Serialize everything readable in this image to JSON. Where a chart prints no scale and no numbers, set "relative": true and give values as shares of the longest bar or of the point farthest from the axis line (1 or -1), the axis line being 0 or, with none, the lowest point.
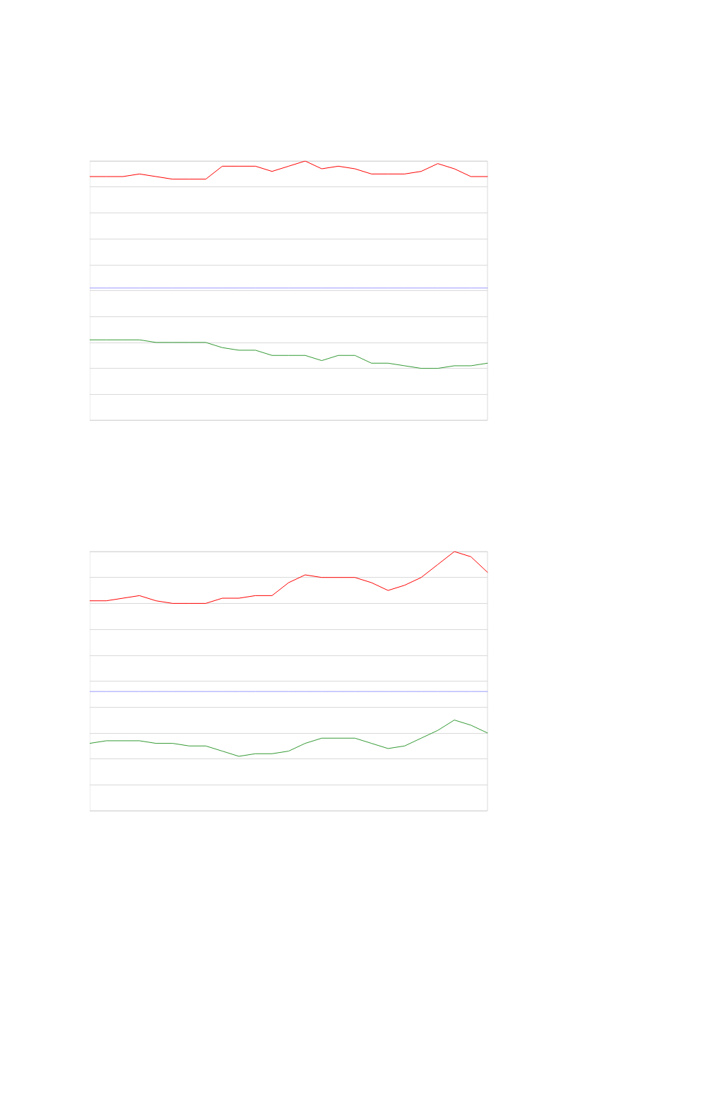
{
  "chart_data": [
    {
      "type": "line",
      "relative": true,
      "grid": "y",
      "marker": "none",
      "line_style": "solid",
      "categories": [
        null,
        null,
        null,
        null,
        null,
        null,
        null,
        null,
        null,
        null,
        null,
        null,
        null,
        null,
        null,
        null,
        null,
        null,
        null,
        null,
        null,
        null,
        null,
        null,
        null
      ],
      "series": [
        {
          "color": "#ff0000",
          "values": [
            0.94,
            0.94,
            0.94,
            0.95,
            0.94,
            0.93,
            0.93,
            0.93,
            0.98,
            0.98,
            0.98,
            0.96,
            0.98,
            1,
            0.97,
            0.98,
            0.97,
            0.95,
            0.95,
            0.95,
            0.96,
            0.99,
            0.97,
            0.94,
            0.94
          ]
        },
        {
          "color": "#9999ff",
          "values": [
            0.51,
            0.51,
            0.51,
            0.51,
            0.51,
            0.51,
            0.51,
            0.51,
            0.51,
            0.51,
            0.51,
            0.51,
            0.51,
            0.51,
            0.51,
            0.51,
            0.51,
            0.51,
            0.51,
            0.51,
            0.51,
            0.51,
            0.51,
            0.51,
            0.51
          ]
        },
        {
          "color": "#339933",
          "values": [
            0.31,
            0.31,
            0.31,
            0.31,
            0.3,
            0.3,
            0.3,
            0.3,
            0.28,
            0.27,
            0.27,
            0.25,
            0.25,
            0.25,
            0.23,
            0.25,
            0.25,
            0.22,
            0.22,
            0.21,
            0.2,
            0.2,
            0.21,
            0.21,
            0.22
          ]
        }
      ]
    },
    {
      "type": "line",
      "relative": true,
      "grid": "y",
      "marker": "none",
      "line_style": "solid",
      "categories": [
        null,
        null,
        null,
        null,
        null,
        null,
        null,
        null,
        null,
        null,
        null,
        null,
        null,
        null,
        null,
        null,
        null,
        null,
        null,
        null,
        null,
        null,
        null,
        null,
        null
      ],
      "series": [
        {
          "color": "#ff0000",
          "values": [
            0.81,
            0.81,
            0.82,
            0.83,
            0.81,
            0.8,
            0.8,
            0.8,
            0.82,
            0.82,
            0.83,
            0.83,
            0.88,
            0.91,
            0.9,
            0.9,
            0.9,
            0.88,
            0.85,
            0.87,
            0.9,
            0.95,
            1,
            0.98,
            0.92
          ]
        },
        {
          "color": "#9999ff",
          "values": [
            0.46,
            0.46,
            0.46,
            0.46,
            0.46,
            0.46,
            0.46,
            0.46,
            0.46,
            0.46,
            0.46,
            0.46,
            0.46,
            0.46,
            0.46,
            0.46,
            0.46,
            0.46,
            0.46,
            0.46,
            0.46,
            0.46,
            0.46,
            0.46,
            0.46
          ]
        },
        {
          "color": "#339933",
          "values": [
            0.26,
            0.27,
            0.27,
            0.27,
            0.26,
            0.26,
            0.25,
            0.25,
            0.23,
            0.21,
            0.22,
            0.22,
            0.23,
            0.26,
            0.28,
            0.28,
            0.28,
            0.26,
            0.24,
            0.25,
            0.28,
            0.31,
            0.35,
            0.33,
            0.3
          ]
        }
      ]
    }
  ]
}
